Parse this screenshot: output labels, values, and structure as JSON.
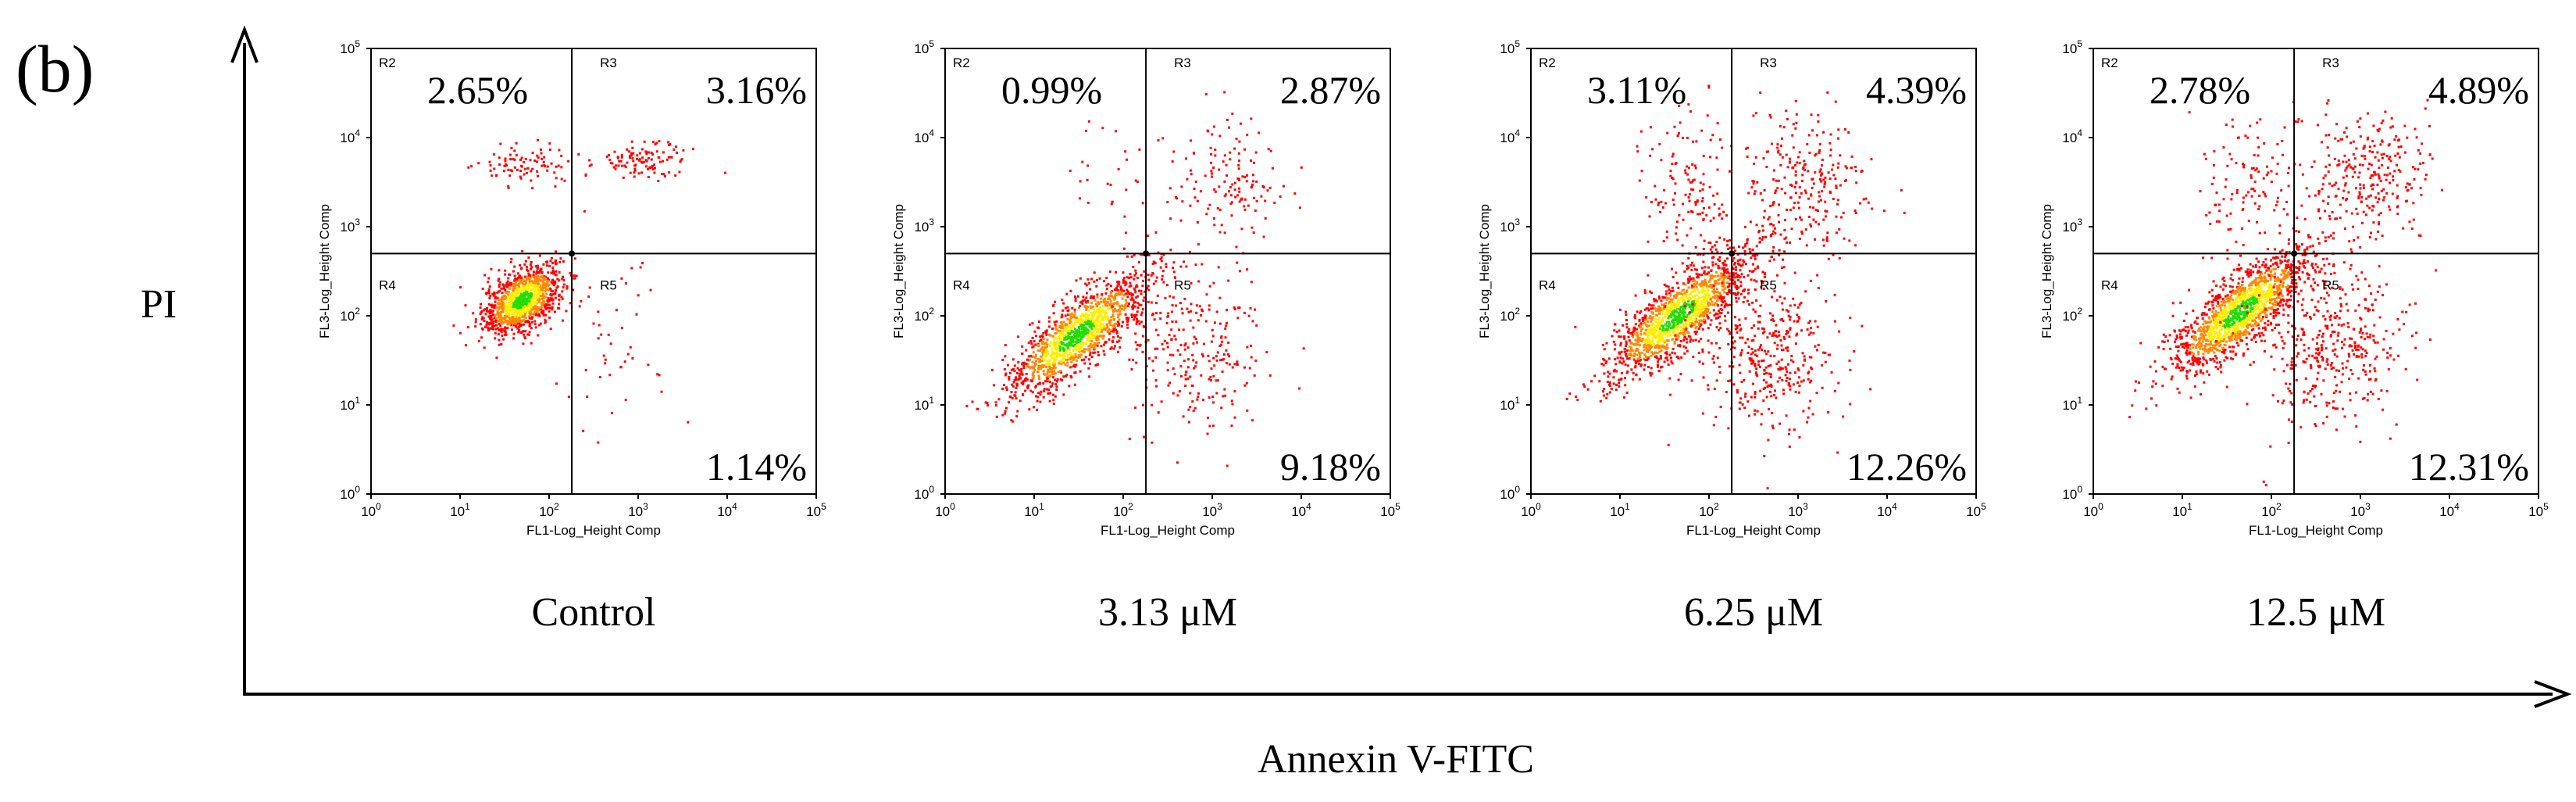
{
  "figure": {
    "panel_label": "(b)",
    "y_axis_label": "PI",
    "x_axis_label": "Annexin V-FITC"
  },
  "colors": {
    "axis": "#000000",
    "dot_low": "#ff0000",
    "dot_mid": "#ff8800",
    "dot_high": "#ffee00",
    "dot_core": "#22dd00",
    "gate_line": "#000000"
  },
  "chart_data": [
    {
      "type": "scatter",
      "title": "Control",
      "xlabel": "FL1-Log_Height Comp",
      "ylabel": "FL3-Log_Height Comp",
      "xscale": "log",
      "yscale": "log",
      "xlim": [
        1,
        100000
      ],
      "ylim": [
        1,
        100000
      ],
      "x_ticks": [
        {
          "base": "10",
          "exp": "0"
        },
        {
          "base": "10",
          "exp": "1"
        },
        {
          "base": "10",
          "exp": "2"
        },
        {
          "base": "10",
          "exp": "3"
        },
        {
          "base": "10",
          "exp": "4"
        },
        {
          "base": "10",
          "exp": "5"
        }
      ],
      "y_ticks": [
        {
          "base": "10",
          "exp": "0"
        },
        {
          "base": "10",
          "exp": "1"
        },
        {
          "base": "10",
          "exp": "2"
        },
        {
          "base": "10",
          "exp": "3"
        },
        {
          "base": "10",
          "exp": "4"
        },
        {
          "base": "10",
          "exp": "5"
        }
      ],
      "gate": {
        "x": 180,
        "y": 500
      },
      "regions": [
        "R2",
        "R3",
        "R4",
        "R5"
      ],
      "percentages": {
        "upper_left": "2.65%",
        "upper_right": "3.16%",
        "lower_right": "1.14%"
      },
      "populations": [
        {
          "cx": 50,
          "cy": 150,
          "sx": 0.22,
          "sy": 0.2,
          "rho": 0.5,
          "n": 1100
        },
        {
          "cx": 60,
          "cy": 5000,
          "sx": 0.3,
          "sy": 0.12,
          "rho": 0,
          "n": 90
        },
        {
          "cx": 1200,
          "cy": 5500,
          "sx": 0.25,
          "sy": 0.1,
          "rho": 0,
          "n": 110
        },
        {
          "cx": 600,
          "cy": 50,
          "sx": 0.35,
          "sy": 0.45,
          "rho": 0,
          "n": 45
        }
      ]
    },
    {
      "type": "scatter",
      "title": "3.13 μM",
      "xlabel": "FL1-Log_Height Comp",
      "ylabel": "FL3-Log_Height Comp",
      "xscale": "log",
      "yscale": "log",
      "xlim": [
        1,
        100000
      ],
      "ylim": [
        1,
        100000
      ],
      "x_ticks": [
        {
          "base": "10",
          "exp": "0"
        },
        {
          "base": "10",
          "exp": "1"
        },
        {
          "base": "10",
          "exp": "2"
        },
        {
          "base": "10",
          "exp": "3"
        },
        {
          "base": "10",
          "exp": "4"
        },
        {
          "base": "10",
          "exp": "5"
        }
      ],
      "y_ticks": [
        {
          "base": "10",
          "exp": "0"
        },
        {
          "base": "10",
          "exp": "1"
        },
        {
          "base": "10",
          "exp": "2"
        },
        {
          "base": "10",
          "exp": "3"
        },
        {
          "base": "10",
          "exp": "4"
        },
        {
          "base": "10",
          "exp": "5"
        }
      ],
      "gate": {
        "x": 180,
        "y": 500
      },
      "regions": [
        "R2",
        "R3",
        "R4",
        "R5"
      ],
      "percentages": {
        "upper_left": "0.99%",
        "upper_right": "2.87%",
        "lower_right": "9.18%"
      },
      "populations": [
        {
          "cx": 30,
          "cy": 60,
          "sx": 0.4,
          "sy": 0.35,
          "rho": 0.8,
          "n": 1300
        },
        {
          "cx": 600,
          "cy": 40,
          "sx": 0.4,
          "sy": 0.45,
          "rho": 0,
          "n": 260
        },
        {
          "cx": 1500,
          "cy": 3000,
          "sx": 0.35,
          "sy": 0.35,
          "rho": 0,
          "n": 140
        },
        {
          "cx": 80,
          "cy": 3000,
          "sx": 0.3,
          "sy": 0.4,
          "rho": 0,
          "n": 30
        }
      ]
    },
    {
      "type": "scatter",
      "title": "6.25 μM",
      "xlabel": "FL1-Log_Height Comp",
      "ylabel": "FL3-Log_Height Comp",
      "xscale": "log",
      "yscale": "log",
      "xlim": [
        1,
        100000
      ],
      "ylim": [
        1,
        100000
      ],
      "x_ticks": [
        {
          "base": "10",
          "exp": "0"
        },
        {
          "base": "10",
          "exp": "1"
        },
        {
          "base": "10",
          "exp": "2"
        },
        {
          "base": "10",
          "exp": "3"
        },
        {
          "base": "10",
          "exp": "4"
        },
        {
          "base": "10",
          "exp": "5"
        }
      ],
      "y_ticks": [
        {
          "base": "10",
          "exp": "0"
        },
        {
          "base": "10",
          "exp": "1"
        },
        {
          "base": "10",
          "exp": "2"
        },
        {
          "base": "10",
          "exp": "3"
        },
        {
          "base": "10",
          "exp": "4"
        },
        {
          "base": "10",
          "exp": "5"
        }
      ],
      "gate": {
        "x": 180,
        "y": 500
      },
      "regions": [
        "R2",
        "R3",
        "R4",
        "R5"
      ],
      "percentages": {
        "upper_left": "3.11%",
        "upper_right": "4.39%",
        "lower_right": "12.26%"
      },
      "populations": [
        {
          "cx": 45,
          "cy": 100,
          "sx": 0.4,
          "sy": 0.35,
          "rho": 0.8,
          "n": 1400
        },
        {
          "cx": 400,
          "cy": 40,
          "sx": 0.4,
          "sy": 0.45,
          "rho": 0,
          "n": 420
        },
        {
          "cx": 1200,
          "cy": 3000,
          "sx": 0.35,
          "sy": 0.4,
          "rho": 0,
          "n": 260
        },
        {
          "cx": 60,
          "cy": 3000,
          "sx": 0.25,
          "sy": 0.4,
          "rho": 0,
          "n": 140
        }
      ]
    },
    {
      "type": "scatter",
      "title": "12.5 μM",
      "xlabel": "FL1-Log_Height Comp",
      "ylabel": "FL3-Log_Height Comp",
      "xscale": "log",
      "yscale": "log",
      "xlim": [
        1,
        100000
      ],
      "ylim": [
        1,
        100000
      ],
      "x_ticks": [
        {
          "base": "10",
          "exp": "0"
        },
        {
          "base": "10",
          "exp": "1"
        },
        {
          "base": "10",
          "exp": "2"
        },
        {
          "base": "10",
          "exp": "3"
        },
        {
          "base": "10",
          "exp": "4"
        },
        {
          "base": "10",
          "exp": "5"
        }
      ],
      "y_ticks": [
        {
          "base": "10",
          "exp": "0"
        },
        {
          "base": "10",
          "exp": "1"
        },
        {
          "base": "10",
          "exp": "2"
        },
        {
          "base": "10",
          "exp": "3"
        },
        {
          "base": "10",
          "exp": "4"
        },
        {
          "base": "10",
          "exp": "5"
        }
      ],
      "gate": {
        "x": 180,
        "y": 500
      },
      "regions": [
        "R2",
        "R3",
        "R4",
        "R5"
      ],
      "percentages": {
        "upper_left": "2.78%",
        "upper_right": "4.89%",
        "lower_right": "12.31%"
      },
      "populations": [
        {
          "cx": 45,
          "cy": 110,
          "sx": 0.4,
          "sy": 0.35,
          "rho": 0.8,
          "n": 1500
        },
        {
          "cx": 450,
          "cy": 45,
          "sx": 0.4,
          "sy": 0.45,
          "rho": 0,
          "n": 400
        },
        {
          "cx": 1300,
          "cy": 3500,
          "sx": 0.35,
          "sy": 0.4,
          "rho": 0,
          "n": 280
        },
        {
          "cx": 60,
          "cy": 3000,
          "sx": 0.25,
          "sy": 0.4,
          "rho": 0,
          "n": 120
        }
      ]
    }
  ]
}
